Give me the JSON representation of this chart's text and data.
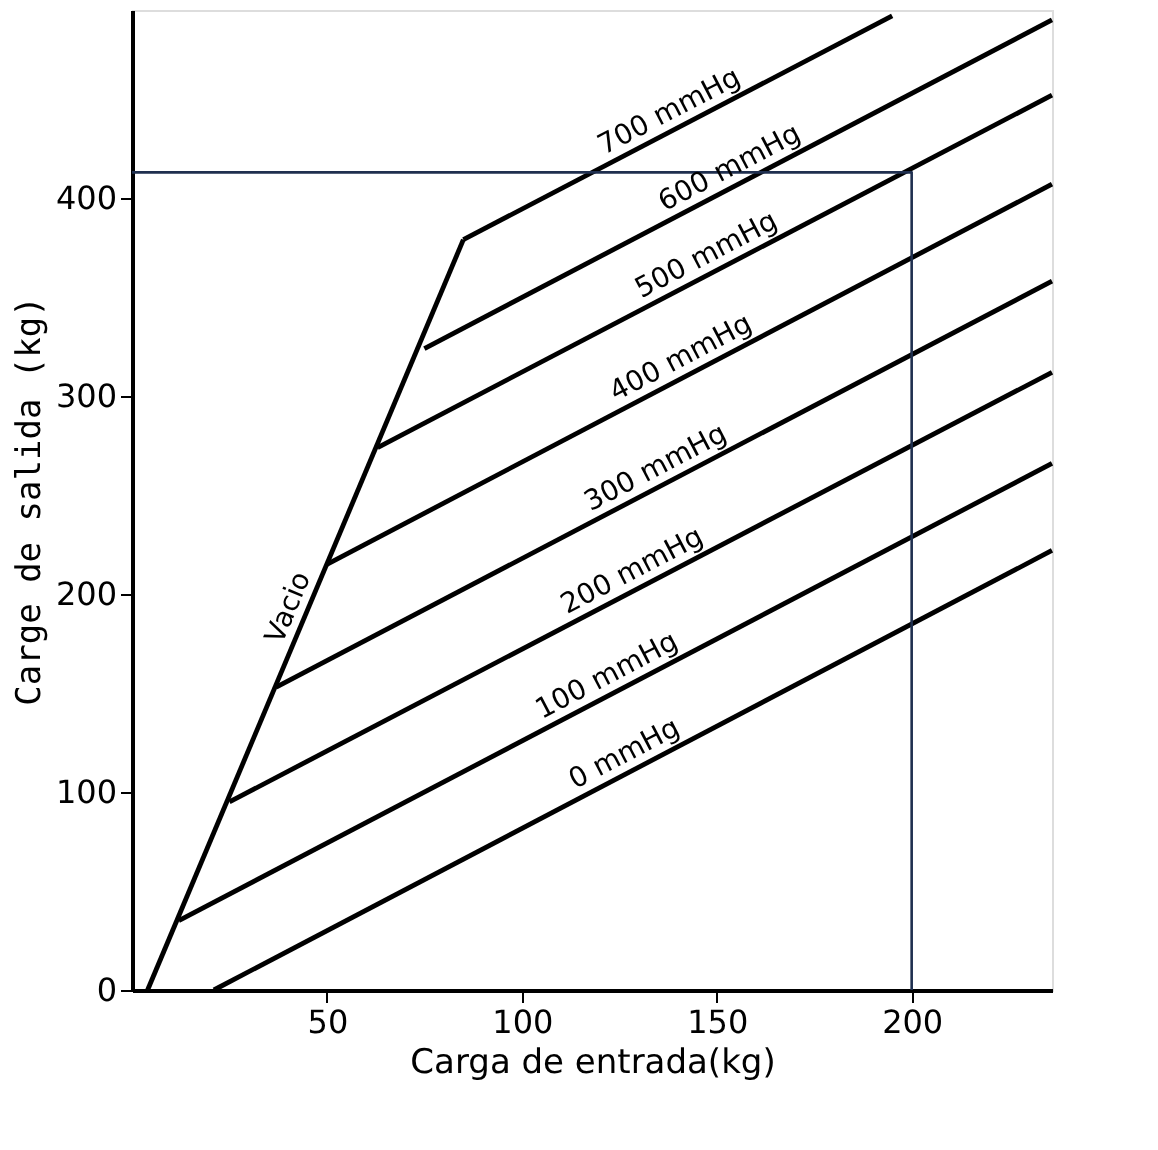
{
  "chart_data": {
    "type": "line",
    "xlabel": "Carga de entrada(kg)",
    "ylabel": "Carge de salida (kg)",
    "xlim": [
      0,
      236
    ],
    "ylim": [
      0,
      495
    ],
    "xticks": [
      50,
      100,
      150,
      200
    ],
    "yticks": [
      0,
      100,
      200,
      300,
      400
    ],
    "grid": false,
    "legend": false,
    "marker": "none",
    "line_style": "solid",
    "series": [
      {
        "name": "Vacio",
        "color": "#000000",
        "x": [
          4,
          85
        ],
        "values": [
          0,
          379
        ]
      },
      {
        "name": "700 mmHg",
        "color": "#000000",
        "x": [
          85,
          195
        ],
        "values": [
          379,
          492
        ]
      },
      {
        "name": "600 mmHg",
        "color": "#000000",
        "x": [
          75,
          236
        ],
        "values": [
          324,
          490
        ]
      },
      {
        "name": "500 mmHg",
        "color": "#000000",
        "x": [
          63,
          236
        ],
        "values": [
          274,
          452
        ]
      },
      {
        "name": "400 mmHg",
        "color": "#000000",
        "x": [
          50,
          236
        ],
        "values": [
          215,
          407
        ]
      },
      {
        "name": "300 mmHg",
        "color": "#000000",
        "x": [
          37,
          236
        ],
        "values": [
          153,
          358
        ]
      },
      {
        "name": "200 mmHg",
        "color": "#000000",
        "x": [
          25,
          236
        ],
        "values": [
          95,
          312
        ]
      },
      {
        "name": "100 mmHg",
        "color": "#000000",
        "x": [
          12,
          236
        ],
        "values": [
          35,
          266
        ]
      },
      {
        "name": "0 mmHg",
        "color": "#000000",
        "x": [
          21,
          236
        ],
        "values": [
          0,
          222
        ]
      },
      {
        "color": "#1f2f4f",
        "x": [
          0,
          200,
          200
        ],
        "values": [
          413,
          413,
          0
        ]
      }
    ]
  }
}
